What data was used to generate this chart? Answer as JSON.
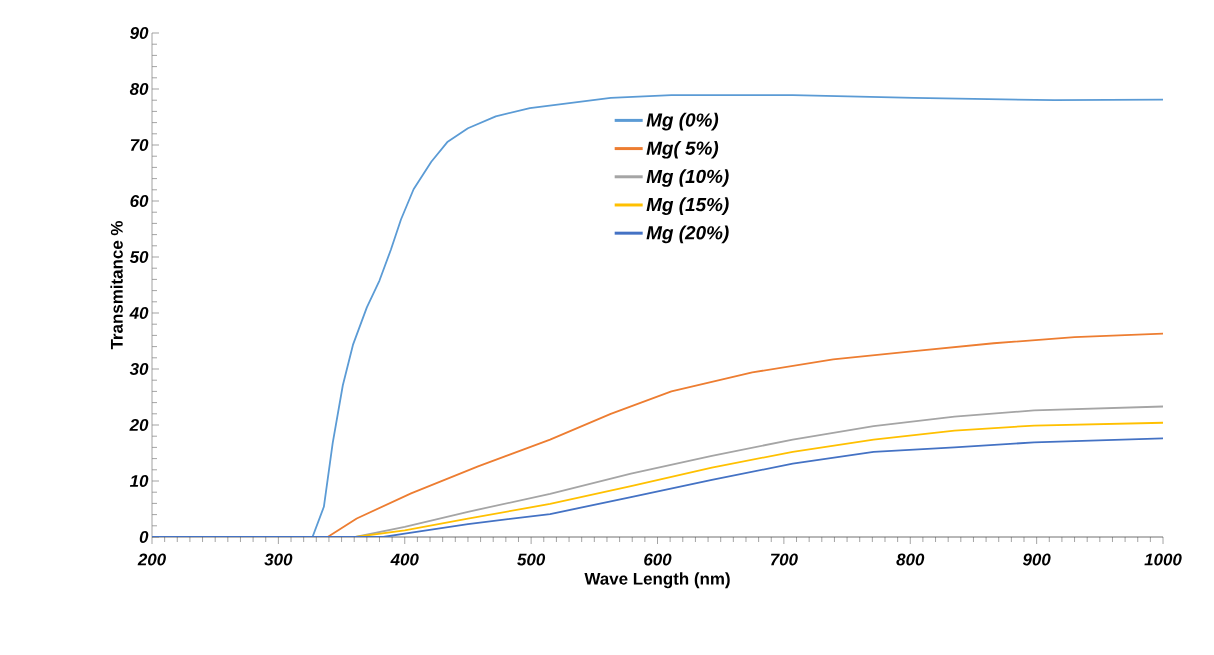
{
  "chart_data": {
    "type": "line",
    "xlabel": "Wave Length (nm)",
    "ylabel": "Transmitance %",
    "xlim": [
      200,
      1000
    ],
    "ylim": [
      0,
      90
    ],
    "xticks": [
      200,
      300,
      400,
      500,
      600,
      700,
      800,
      900,
      1000
    ],
    "yticks": [
      0,
      10,
      20,
      30,
      40,
      50,
      60,
      70,
      80,
      90
    ],
    "grid": false,
    "legend": "top",
    "marker": "none",
    "line_style": "solid",
    "series": [
      {
        "name": "Mg (0%)",
        "color": "#5b9bd5",
        "x": [
          200,
          300,
          327,
          336,
          343,
          351,
          359,
          370,
          380,
          389,
          397,
          407,
          421,
          434,
          450,
          472,
          499,
          563,
          611,
          707,
          803,
          914,
          1000
        ],
        "values": [
          0,
          0,
          0,
          5.4,
          16.8,
          27.1,
          34.3,
          41.0,
          45.8,
          51.3,
          56.7,
          62.1,
          67.0,
          70.6,
          73.0,
          75.1,
          76.6,
          78.4,
          78.9,
          78.9,
          78.4,
          78.0,
          78.1
        ]
      },
      {
        "name": "Mg( 5%)",
        "color": "#ed7d31",
        "x": [
          200,
          300,
          339,
          362,
          405,
          458,
          515,
          563,
          611,
          675,
          739,
          803,
          866,
          930,
          1000
        ],
        "values": [
          0,
          0,
          0,
          3.3,
          7.8,
          12.6,
          17.4,
          22.0,
          26.0,
          29.4,
          31.7,
          33.2,
          34.6,
          35.7,
          36.3
        ]
      },
      {
        "name": "Mg  (10%)",
        "color": "#a5a5a5",
        "x": [
          200,
          300,
          361,
          400,
          450,
          515,
          579,
          643,
          707,
          771,
          835,
          898,
          1000
        ],
        "values": [
          0,
          0,
          0,
          1.8,
          4.5,
          7.7,
          11.3,
          14.5,
          17.4,
          19.8,
          21.5,
          22.6,
          23.3
        ]
      },
      {
        "name": "Mg   (15%)",
        "color": "#ffc000",
        "x": [
          200,
          300,
          361,
          400,
          450,
          515,
          579,
          643,
          707,
          771,
          835,
          898,
          1000
        ],
        "values": [
          0,
          0,
          0,
          1.2,
          3.3,
          5.9,
          9.1,
          12.4,
          15.2,
          17.4,
          19.0,
          19.9,
          20.4
        ]
      },
      {
        "name": "Mg   (20%)",
        "color": "#4472c4",
        "x": [
          200,
          300,
          383,
          400,
          450,
          515,
          579,
          643,
          707,
          771,
          835,
          898,
          1000
        ],
        "values": [
          0,
          0,
          0,
          0.6,
          2.3,
          4.1,
          7.1,
          10.2,
          13.1,
          15.2,
          16.0,
          16.9,
          17.6
        ]
      }
    ]
  }
}
